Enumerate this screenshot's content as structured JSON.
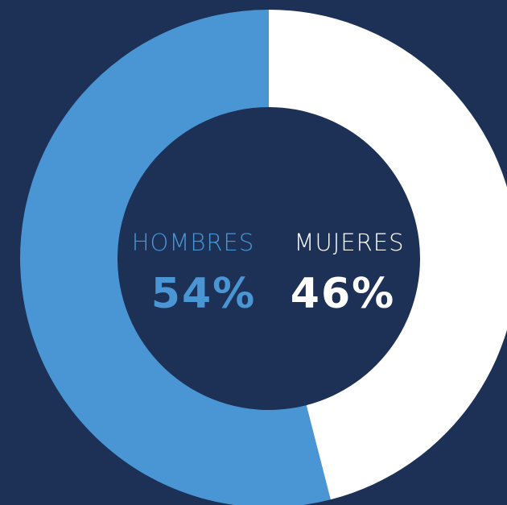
{
  "chart_data": {
    "type": "pie",
    "categories": [
      "HOMBRES",
      "MUJERES"
    ],
    "values": [
      54,
      46
    ],
    "value_labels": [
      "54%",
      "46%"
    ],
    "colors": [
      "#4a96d4",
      "#ffffff"
    ],
    "background": "#1c3155"
  }
}
